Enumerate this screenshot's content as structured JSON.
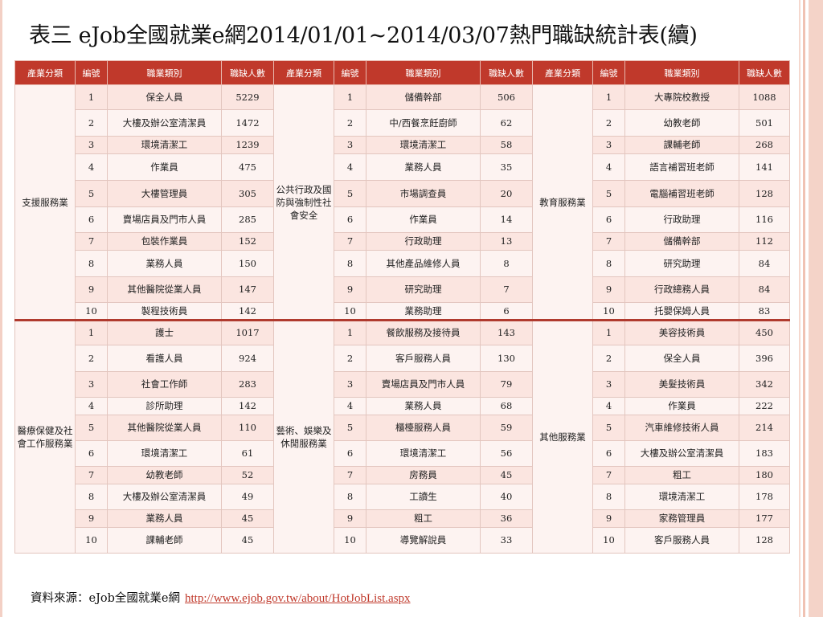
{
  "title": "表三 eJob全國就業e網2014/01/01~2014/03/07熱門職缺統計表(續)",
  "headers": [
    "產業分類",
    "編號",
    "職業類別",
    "職缺人數",
    "產業分類",
    "編號",
    "職業類別",
    "職缺人數",
    "產業分類",
    "編號",
    "職業類別",
    "職缺人數"
  ],
  "sections": [
    {
      "groups": [
        "支援服務業",
        "公共行政及國防與強制性社會安全",
        "教育服務業"
      ],
      "rows": [
        [
          "1",
          "保全人員",
          "5229",
          "1",
          "儲備幹部",
          "506",
          "1",
          "大專院校教授",
          "1088"
        ],
        [
          "2",
          "大樓及辦公室清潔員",
          "1472",
          "2",
          "中/西餐烹飪廚師",
          "62",
          "2",
          "幼教老師",
          "501"
        ],
        [
          "3",
          "環境清潔工",
          "1239",
          "3",
          "環境清潔工",
          "58",
          "3",
          "課輔老師",
          "268"
        ],
        [
          "4",
          "作業員",
          "475",
          "4",
          "業務人員",
          "35",
          "4",
          "語言補習班老師",
          "141"
        ],
        [
          "5",
          "大樓管理員",
          "305",
          "5",
          "市場調查員",
          "20",
          "5",
          "電腦補習班老師",
          "128"
        ],
        [
          "6",
          "賣場店員及門市人員",
          "285",
          "6",
          "作業員",
          "14",
          "6",
          "行政助理",
          "116"
        ],
        [
          "7",
          "包裝作業員",
          "152",
          "7",
          "行政助理",
          "13",
          "7",
          "儲備幹部",
          "112"
        ],
        [
          "8",
          "業務人員",
          "150",
          "8",
          "其他產品維修人員",
          "8",
          "8",
          "研究助理",
          "84"
        ],
        [
          "9",
          "其他醫院從業人員",
          "147",
          "9",
          "研究助理",
          "7",
          "9",
          "行政總務人員",
          "84"
        ],
        [
          "10",
          "製程技術員",
          "142",
          "10",
          "業務助理",
          "6",
          "10",
          "托嬰保姆人員",
          "83"
        ]
      ]
    },
    {
      "groups": [
        "醫療保健及社會工作服務業",
        "藝術、娛樂及休閒服務業",
        "其他服務業"
      ],
      "rows": [
        [
          "1",
          "護士",
          "1017",
          "1",
          "餐飲服務及接待員",
          "143",
          "1",
          "美容技術員",
          "450"
        ],
        [
          "2",
          "看護人員",
          "924",
          "2",
          "客戶服務人員",
          "130",
          "2",
          "保全人員",
          "396"
        ],
        [
          "3",
          "社會工作師",
          "283",
          "3",
          "賣場店員及門市人員",
          "79",
          "3",
          "美髮技術員",
          "342"
        ],
        [
          "4",
          "診所助理",
          "142",
          "4",
          "業務人員",
          "68",
          "4",
          "作業員",
          "222"
        ],
        [
          "5",
          "其他醫院從業人員",
          "110",
          "5",
          "櫃檯服務人員",
          "59",
          "5",
          "汽車維修技術人員",
          "214"
        ],
        [
          "6",
          "環境清潔工",
          "61",
          "6",
          "環境清潔工",
          "56",
          "6",
          "大樓及辦公室清潔員",
          "183"
        ],
        [
          "7",
          "幼教老師",
          "52",
          "7",
          "房務員",
          "45",
          "7",
          "粗工",
          "180"
        ],
        [
          "8",
          "大樓及辦公室清潔員",
          "49",
          "8",
          "工讀生",
          "40",
          "8",
          "環境清潔工",
          "178"
        ],
        [
          "9",
          "業務人員",
          "45",
          "9",
          "粗工",
          "36",
          "9",
          "家務管理員",
          "177"
        ],
        [
          "10",
          "課輔老師",
          "45",
          "10",
          "導覽解說員",
          "33",
          "10",
          "客戶服務人員",
          "128"
        ]
      ]
    }
  ],
  "source": {
    "label": "資料來源：eJob全國就業e網",
    "url": "http://www.ejob.gov.tw/about/HotJobList.aspx"
  }
}
